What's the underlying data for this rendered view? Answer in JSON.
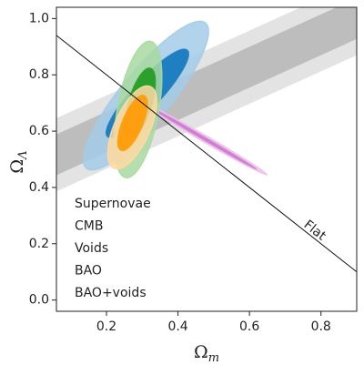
{
  "chart_data": {
    "type": "contour",
    "xlabel": {
      "symbol": "Ω",
      "subscript": "m"
    },
    "ylabel": {
      "symbol": "Ω",
      "subscript": "Λ"
    },
    "xlim": [
      0.06,
      0.9
    ],
    "ylim": [
      -0.04,
      1.04
    ],
    "xticks": [
      0.2,
      0.4,
      0.6,
      0.8
    ],
    "yticks": [
      {
        "value": 0,
        "label": "0.0"
      },
      0.2,
      0.4,
      0.6,
      0.8,
      {
        "value": 1,
        "label": "1.0"
      }
    ],
    "legend": "lower left",
    "series": [
      {
        "name": "Supernovae",
        "shape": "ellipse",
        "color": "#1f7fc0",
        "light": "#a3cbe8",
        "levels": [
          {
            "x": [
              0.144,
              0.477
            ],
            "y": [
              0.468,
              0.984
            ],
            "width": 0.14
          },
          {
            "x": [
              0.203,
              0.426
            ],
            "y": [
              0.581,
              0.887
            ],
            "width": 0.077
          }
        ]
      },
      {
        "name": "CMB",
        "shape": "ellipse",
        "color": "#d17fd1",
        "light": "#ebc2eb",
        "levels": [
          {
            "x": [
              0.31,
              0.649
            ],
            "y": [
              0.694,
              0.445
            ],
            "width": 0.018
          },
          {
            "x": [
              0.33,
              0.62
            ],
            "y": [
              0.68,
              0.465
            ],
            "width": 0.007
          }
        ]
      },
      {
        "name": "Voids",
        "shape": "band",
        "color": "#bdbdbd",
        "light": "#e3e3e3",
        "levels": [
          {
            "x": [
              0.06,
              0.9
            ],
            "y": [
              0.516,
              1.0
            ],
            "height": 0.26
          },
          {
            "x": [
              0.06,
              0.9
            ],
            "y": [
              0.516,
              1.0
            ],
            "height": 0.145
          }
        ]
      },
      {
        "name": "BAO",
        "shape": "ellipse",
        "color": "#2ca02c",
        "light": "#a8d9a0",
        "levels": [
          {
            "x": [
              0.254,
              0.323
            ],
            "y": [
              0.435,
              0.919
            ],
            "width": 0.115
          },
          {
            "x": [
              0.267,
              0.323
            ],
            "y": [
              0.581,
              0.823
            ],
            "width": 0.064
          }
        ]
      },
      {
        "name": "BAO+voids",
        "shape": "ellipse",
        "color": "#ff9f10",
        "light": "#ffd9a3",
        "levels": [
          {
            "x": [
              0.221,
              0.323
            ],
            "y": [
              0.468,
              0.758
            ],
            "width": 0.1
          },
          {
            "x": [
              0.241,
              0.305
            ],
            "y": [
              0.532,
              0.726
            ],
            "width": 0.056
          }
        ]
      }
    ],
    "flat": {
      "label": "Flat",
      "x": [
        0.06,
        0.9
      ],
      "y": [
        0.94,
        0.1
      ]
    }
  }
}
